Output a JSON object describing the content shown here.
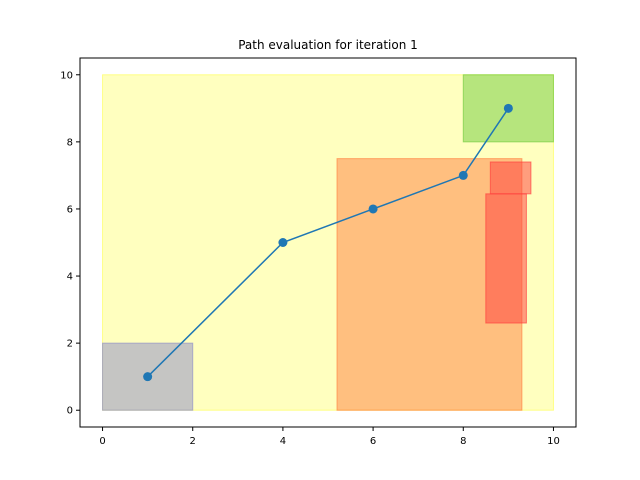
{
  "chart_data": {
    "type": "line",
    "title": "Path evaluation for iteration 1",
    "xlabel": "",
    "ylabel": "",
    "xlim": [
      -0.5,
      10.5
    ],
    "ylim": [
      -0.5,
      10.5
    ],
    "x_ticks": [
      0,
      2,
      4,
      6,
      8,
      10
    ],
    "y_ticks": [
      0,
      2,
      4,
      6,
      8,
      10
    ],
    "grid": false,
    "regions": [
      {
        "role": "workspace",
        "x": [
          0,
          10
        ],
        "y": [
          0,
          10
        ],
        "color": "#ffff00",
        "opacity": 0.25
      },
      {
        "role": "start",
        "x": [
          0,
          2
        ],
        "y": [
          0,
          2
        ],
        "color": "#8c8cc8",
        "opacity": 0.5
      },
      {
        "role": "goal",
        "x": [
          8,
          10
        ],
        "y": [
          8,
          10
        ],
        "color": "#6ecb3c",
        "opacity": 0.5
      },
      {
        "role": "obstacle",
        "x": [
          5.2,
          9.3
        ],
        "y": [
          0,
          7.5
        ],
        "color": "#ff7f3f",
        "opacity": 0.5
      },
      {
        "role": "obstacle",
        "x": [
          8.6,
          9.5
        ],
        "y": [
          6.45,
          7.4
        ],
        "color": "#ff3c3c",
        "opacity": 0.5
      },
      {
        "role": "obstacle",
        "x": [
          8.5,
          9.4
        ],
        "y": [
          2.6,
          6.45
        ],
        "color": "#ff3c3c",
        "opacity": 0.5
      }
    ],
    "series": [
      {
        "x": [
          1,
          4,
          6,
          8,
          9
        ],
        "y": [
          1,
          5,
          6,
          7,
          9
        ],
        "color": "#1f77b4"
      }
    ]
  }
}
